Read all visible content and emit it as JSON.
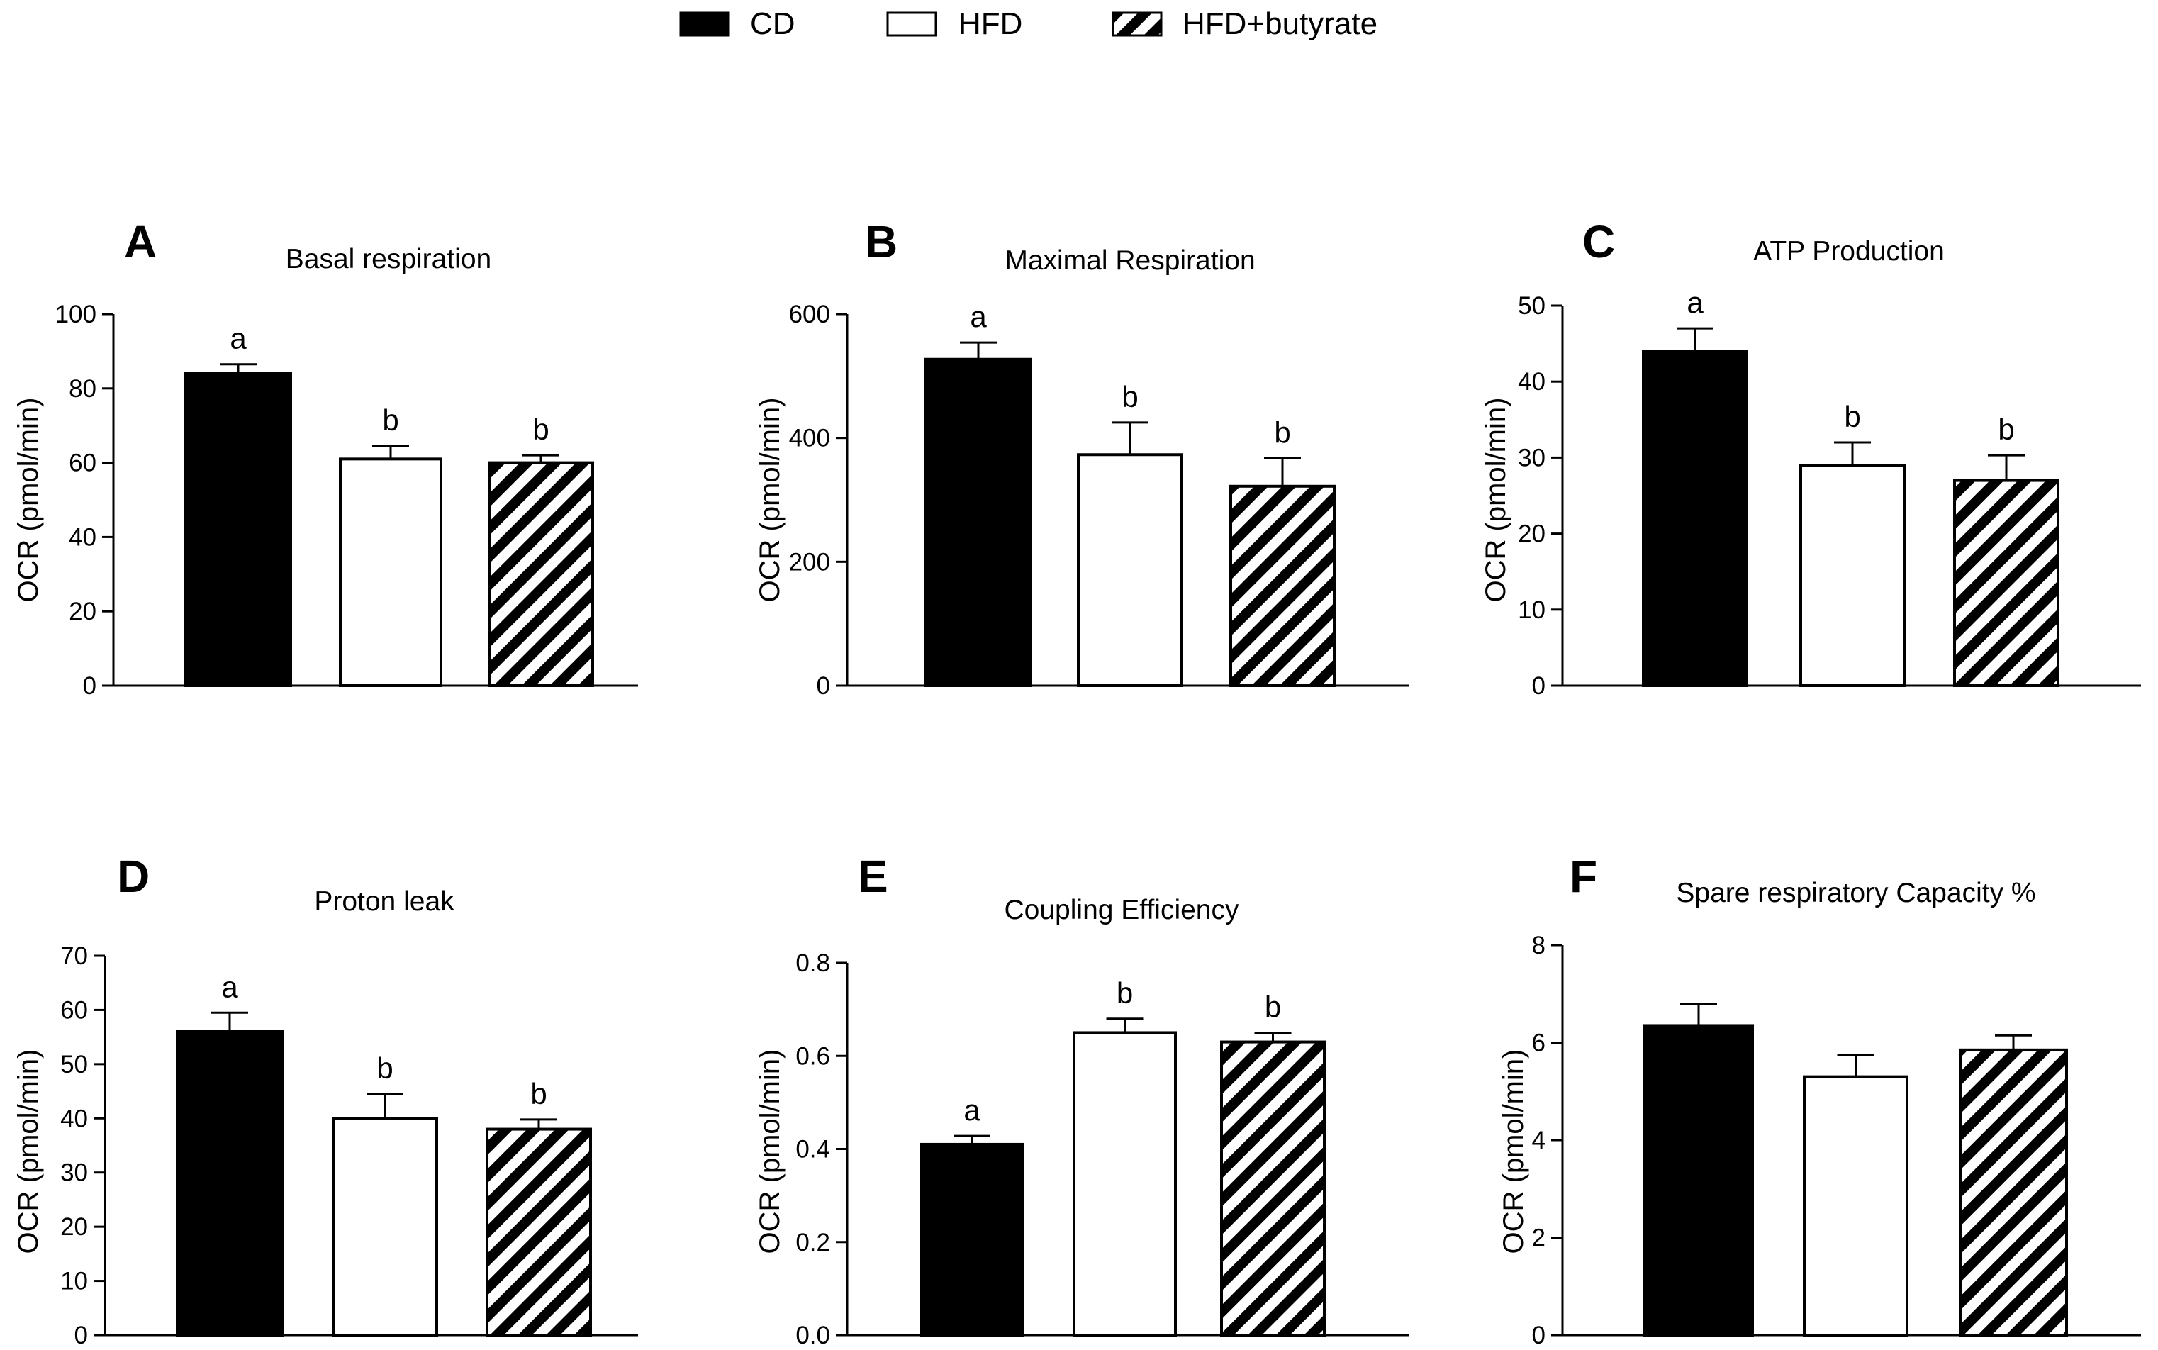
{
  "legend": {
    "items": [
      {
        "label": "CD",
        "fill": "solid"
      },
      {
        "label": "HFD",
        "fill": "empty"
      },
      {
        "label": "HFD+butyrate",
        "fill": "hatch"
      }
    ]
  },
  "colors": {
    "bar_stroke": "#000000",
    "solid": "#000000",
    "empty": "#ffffff",
    "axis": "#000000"
  },
  "chart_data": [
    {
      "type": "bar",
      "panel": "A",
      "title": "Basal respiration",
      "xlabel": "",
      "ylabel": "OCR (pmol/min)",
      "categories": [
        "CD",
        "HFD",
        "HFD+butyrate"
      ],
      "values": [
        84,
        61,
        60
      ],
      "errors": [
        2.5,
        3.5,
        2
      ],
      "labels": [
        "a",
        "b",
        "b"
      ],
      "ylim": [
        0,
        100
      ],
      "ticks": [
        {
          "v": 0,
          "t": "0"
        },
        {
          "v": 20,
          "t": "20"
        },
        {
          "v": 40,
          "t": "40"
        },
        {
          "v": 60,
          "t": "60"
        },
        {
          "v": 80,
          "t": "80"
        },
        {
          "v": 100,
          "t": "100"
        }
      ]
    },
    {
      "type": "bar",
      "panel": "B",
      "title": "Maximal Respiration",
      "xlabel": "",
      "ylabel": "OCR (pmol/min)",
      "categories": [
        "CD",
        "HFD",
        "HFD+butyrate"
      ],
      "values": [
        527,
        373,
        322
      ],
      "errors": [
        27,
        52,
        45
      ],
      "labels": [
        "a",
        "b",
        "b"
      ],
      "ylim": [
        0,
        600
      ],
      "ticks": [
        {
          "v": 0,
          "t": "0"
        },
        {
          "v": 200,
          "t": "200"
        },
        {
          "v": 400,
          "t": "400"
        },
        {
          "v": 600,
          "t": "600"
        }
      ]
    },
    {
      "type": "bar",
      "panel": "C",
      "title": "ATP Production",
      "xlabel": "",
      "ylabel": "OCR (pmol/min)",
      "categories": [
        "CD",
        "HFD",
        "HFD+butyrate"
      ],
      "values": [
        44,
        29,
        27
      ],
      "errors": [
        3,
        3,
        3.3
      ],
      "labels": [
        "a",
        "b",
        "b"
      ],
      "ylim": [
        0,
        50
      ],
      "ticks": [
        {
          "v": 0,
          "t": "0"
        },
        {
          "v": 10,
          "t": "10"
        },
        {
          "v": 20,
          "t": "20"
        },
        {
          "v": 30,
          "t": "30"
        },
        {
          "v": 40,
          "t": "40"
        },
        {
          "v": 50,
          "t": "50"
        }
      ]
    },
    {
      "type": "bar",
      "panel": "D",
      "title": "Proton leak",
      "xlabel": "",
      "ylabel": "OCR (pmol/min)",
      "categories": [
        "CD",
        "HFD",
        "HFD+butyrate"
      ],
      "values": [
        56,
        40,
        38
      ],
      "errors": [
        3.5,
        4.5,
        1.8
      ],
      "labels": [
        "a",
        "b",
        "b"
      ],
      "ylim": [
        0,
        70
      ],
      "ticks": [
        {
          "v": 0,
          "t": "0"
        },
        {
          "v": 10,
          "t": "10"
        },
        {
          "v": 20,
          "t": "20"
        },
        {
          "v": 30,
          "t": "30"
        },
        {
          "v": 40,
          "t": "40"
        },
        {
          "v": 50,
          "t": "50"
        },
        {
          "v": 60,
          "t": "60"
        },
        {
          "v": 70,
          "t": "70"
        }
      ]
    },
    {
      "type": "bar",
      "panel": "E",
      "title": "Coupling Efficiency",
      "xlabel": "",
      "ylabel": "OCR (pmol/min)",
      "categories": [
        "CD",
        "HFD",
        "HFD+butyrate"
      ],
      "values": [
        0.41,
        0.65,
        0.63
      ],
      "errors": [
        0.018,
        0.03,
        0.02
      ],
      "labels": [
        "a",
        "b",
        "b"
      ],
      "ylim": [
        0,
        0.8
      ],
      "ticks": [
        {
          "v": 0,
          "t": "0.0"
        },
        {
          "v": 0.2,
          "t": "0.2"
        },
        {
          "v": 0.4,
          "t": "0.4"
        },
        {
          "v": 0.6,
          "t": "0.6"
        },
        {
          "v": 0.8,
          "t": "0.8"
        }
      ]
    },
    {
      "type": "bar",
      "panel": "F",
      "title": "Spare respiratory Capacity %",
      "xlabel": "",
      "ylabel": "OCR (pmol/min)",
      "categories": [
        "CD",
        "HFD",
        "HFD+butyrate"
      ],
      "values": [
        6.35,
        5.3,
        5.85
      ],
      "errors": [
        0.45,
        0.45,
        0.3
      ],
      "labels": [
        "",
        "",
        ""
      ],
      "ylim": [
        0,
        8
      ],
      "ticks": [
        {
          "v": 0,
          "t": "0"
        },
        {
          "v": 2,
          "t": "2"
        },
        {
          "v": 4,
          "t": "4"
        },
        {
          "v": 6,
          "t": "6"
        },
        {
          "v": 8,
          "t": "8"
        }
      ]
    }
  ]
}
